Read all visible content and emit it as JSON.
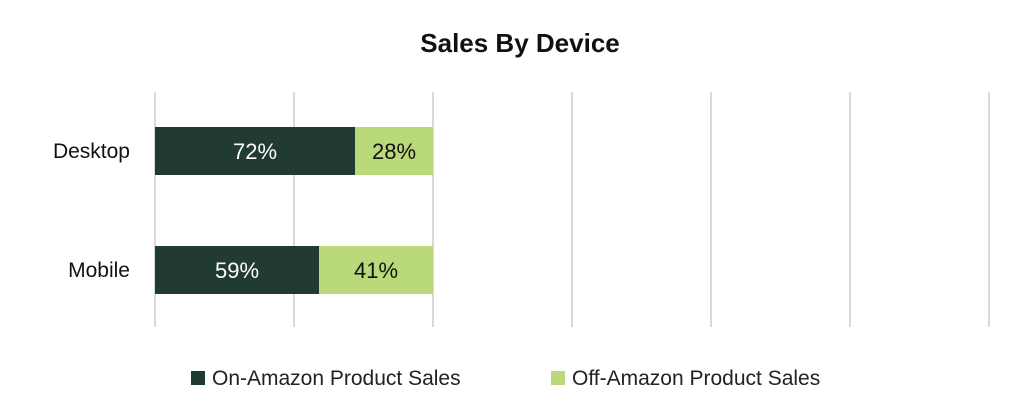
{
  "chart_data": {
    "type": "bar",
    "orientation": "horizontal",
    "stacked": true,
    "title": "Sales By Device",
    "categories": [
      "Desktop",
      "Mobile"
    ],
    "series": [
      {
        "name": "On-Amazon Product Sales",
        "values": [
          72,
          59
        ],
        "labels": [
          "72%",
          "59%"
        ]
      },
      {
        "name": "Off-Amazon Product Sales",
        "values": [
          28,
          41
        ],
        "labels": [
          "28%",
          "41%"
        ]
      }
    ],
    "xlabel": "",
    "ylabel": "",
    "grid": true,
    "legend": "bottom"
  },
  "colors": {
    "series": [
      "#213a33",
      "#b9d97a"
    ],
    "label_text": [
      "#ffffff",
      "#111111"
    ],
    "grid": "#d9d9d9"
  }
}
